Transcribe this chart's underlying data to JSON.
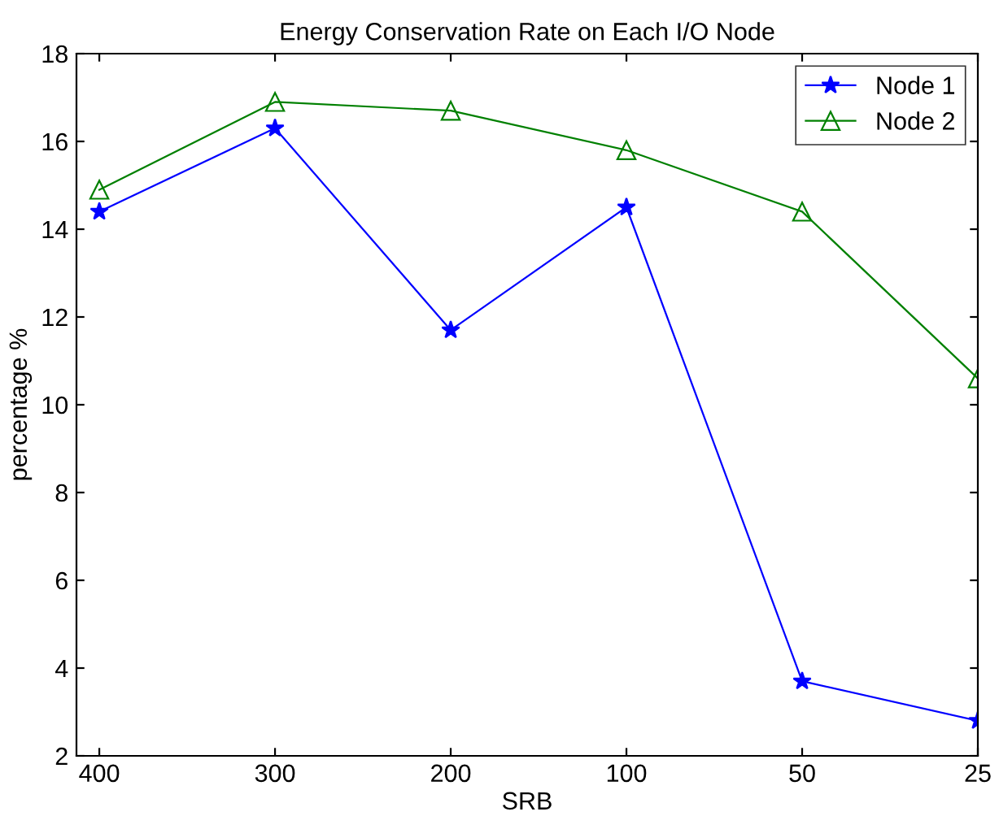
{
  "chart_data": {
    "type": "line",
    "title": "Energy Conservation Rate on Each I/O Node",
    "xlabel": "SRB",
    "ylabel": "percentage %",
    "categories": [
      "400",
      "300",
      "200",
      "100",
      "50",
      "25"
    ],
    "series": [
      {
        "name": "Node 1",
        "color": "#0000ff",
        "marker": "star",
        "values": [
          14.4,
          16.3,
          11.7,
          14.5,
          3.7,
          2.8
        ]
      },
      {
        "name": "Node 2",
        "color": "#008000",
        "marker": "triangle",
        "values": [
          14.9,
          16.9,
          16.7,
          15.8,
          14.4,
          10.6
        ]
      }
    ],
    "ylim": [
      2,
      18
    ],
    "yticks": [
      2,
      4,
      6,
      8,
      10,
      12,
      14,
      16,
      18
    ],
    "grid": false,
    "legend": "top right",
    "line_style": "solid"
  }
}
